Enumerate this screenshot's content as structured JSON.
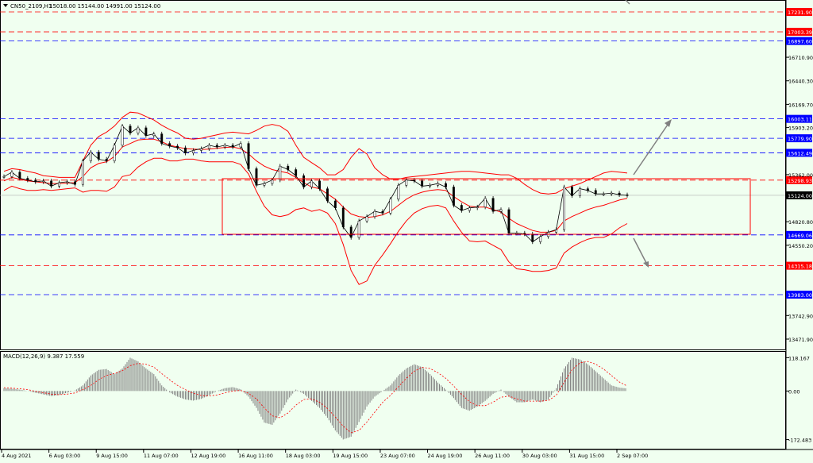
{
  "header": {
    "symbol_info": "CN50_2109,H1",
    "ohlc": "15018.00 15144.00 14991.00 15124.00"
  },
  "macd": {
    "label": "MACD(12,26,9) 9.387 17.559",
    "ticks": [
      "118.167",
      "0.00",
      "-172.483"
    ]
  },
  "price_axis": {
    "ticks": [
      "16710.90",
      "16440.30",
      "16169.70",
      "15903.20",
      "15362.00",
      "14820.80",
      "14550.20",
      "13742.90",
      "13471.90"
    ]
  },
  "price_labels": [
    {
      "text": "17231.90",
      "price": 17231.9,
      "color": "#ff0000",
      "style": "dashed"
    },
    {
      "text": "17003.39",
      "price": 17003.39,
      "color": "#ff0000",
      "style": "dashed"
    },
    {
      "text": "16897.60",
      "price": 16897.6,
      "color": "#0000ff",
      "style": "dashed"
    },
    {
      "text": "16003.11",
      "price": 16003.11,
      "color": "#0000ff",
      "style": "dashed"
    },
    {
      "text": "15779.90",
      "price": 15779.9,
      "color": "#0000ff",
      "style": "dashed"
    },
    {
      "text": "15612.49",
      "price": 15612.49,
      "color": "#0000ff",
      "style": "dashed"
    },
    {
      "text": "15298.93",
      "price": 15298.93,
      "color": "#ff0000",
      "style": "dashed"
    },
    {
      "text": "15124.00",
      "price": 15124.0,
      "color": "#000000",
      "style": "current"
    },
    {
      "text": "14669.06",
      "price": 14669.06,
      "color": "#0000ff",
      "style": "dashed"
    },
    {
      "text": "14315.18",
      "price": 14315.18,
      "color": "#ff0000",
      "style": "dashed"
    },
    {
      "text": "13983.00",
      "price": 13983.0,
      "color": "#0000ff",
      "style": "dashed"
    }
  ],
  "time_axis": {
    "ticks": [
      "4 Aug 2021",
      "6 Aug 03:00",
      "9 Aug 15:00",
      "11 Aug 07:00",
      "12 Aug 19:00",
      "16 Aug 11:00",
      "18 Aug 03:00",
      "19 Aug 15:00",
      "23 Aug 07:00",
      "24 Aug 19:00",
      "26 Aug 11:00",
      "30 Aug 03:00",
      "31 Aug 15:00",
      "2 Sep 07:00"
    ]
  },
  "colors": {
    "background": "#f0fff0",
    "bollinger": "#ff0000",
    "candles": "#000000",
    "histogram": "#808080",
    "signal": "#ff0000",
    "arrows": "#808080"
  },
  "chart_data": [
    {
      "type": "line",
      "x": [
        0,
        10,
        20,
        30,
        40,
        50,
        60,
        70,
        80,
        90,
        100,
        110,
        120,
        130,
        140,
        150,
        160,
        170,
        180,
        190,
        200,
        210,
        220,
        230,
        240,
        250,
        260,
        270,
        280,
        290,
        300,
        310,
        320,
        330,
        340,
        350,
        360,
        370,
        380,
        390,
        400,
        410,
        420,
        430,
        440,
        450,
        460,
        470,
        480,
        490,
        500,
        510,
        520,
        530,
        540,
        550,
        560,
        570,
        580,
        590,
        600,
        610,
        620,
        630,
        640,
        650,
        660,
        670,
        680,
        690,
        700,
        710,
        720,
        730,
        740,
        750,
        760,
        770,
        780,
        790
      ],
      "series": [
        {
          "values": [
            15340,
            15390,
            15320,
            15300,
            15280,
            15290,
            15230,
            15270,
            15280,
            15250,
            15520,
            15620,
            15540,
            15520,
            15700,
            15920,
            15840,
            15900,
            15810,
            15830,
            15720,
            15690,
            15670,
            15610,
            15640,
            15660,
            15700,
            15680,
            15700,
            15680,
            15720,
            15430,
            15240,
            15260,
            15300,
            15460,
            15420,
            15350,
            15220,
            15290,
            15200,
            15060,
            14980,
            14760,
            14640,
            14830,
            14880,
            14940,
            14920,
            15080,
            15240,
            15300,
            15290,
            15230,
            15240,
            15260,
            15220,
            15010,
            14950,
            14980,
            14990,
            15090,
            14940,
            14960,
            14690,
            14690,
            14680,
            14590,
            14650,
            14700,
            14730,
            15220,
            15120,
            15200,
            15180,
            15140,
            15140,
            15150,
            15130,
            15124
          ]
        },
        {
          "values": [
            15290,
            15330,
            15310,
            15290,
            15280,
            15270,
            15260,
            15260,
            15265,
            15270,
            15340,
            15440,
            15490,
            15510,
            15570,
            15680,
            15720,
            15760,
            15770,
            15770,
            15740,
            15700,
            15680,
            15660,
            15655,
            15650,
            15655,
            15665,
            15675,
            15680,
            15660,
            15600,
            15520,
            15460,
            15420,
            15400,
            15380,
            15330,
            15270,
            15220,
            15200,
            15140,
            15080,
            14990,
            14910,
            14880,
            14870,
            14880,
            14900,
            14940,
            15010,
            15080,
            15130,
            15160,
            15180,
            15190,
            15180,
            15110,
            15050,
            15000,
            14990,
            14990,
            14960,
            14930,
            14860,
            14800,
            14760,
            14720,
            14700,
            14700,
            14720,
            14830,
            14880,
            14920,
            14960,
            14990,
            15010,
            15040,
            15070,
            15090
          ]
        },
        {
          "values": [
            15400,
            15430,
            15420,
            15400,
            15380,
            15350,
            15340,
            15330,
            15330,
            15330,
            15520,
            15700,
            15800,
            15850,
            15920,
            16020,
            16080,
            16070,
            16030,
            15990,
            15930,
            15880,
            15840,
            15780,
            15770,
            15780,
            15800,
            15820,
            15840,
            15850,
            15840,
            15830,
            15870,
            15920,
            15940,
            15920,
            15860,
            15700,
            15560,
            15500,
            15440,
            15360,
            15360,
            15420,
            15560,
            15660,
            15600,
            15440,
            15360,
            15310,
            15310,
            15330,
            15340,
            15350,
            15360,
            15370,
            15380,
            15390,
            15400,
            15400,
            15390,
            15380,
            15370,
            15360,
            15360,
            15320,
            15250,
            15190,
            15150,
            15140,
            15150,
            15200,
            15230,
            15260,
            15300,
            15340,
            15380,
            15400,
            15390,
            15380
          ]
        },
        {
          "values": [
            15180,
            15230,
            15200,
            15180,
            15180,
            15190,
            15180,
            15190,
            15200,
            15210,
            15160,
            15180,
            15180,
            15170,
            15220,
            15340,
            15360,
            15450,
            15510,
            15550,
            15550,
            15520,
            15520,
            15540,
            15540,
            15520,
            15510,
            15510,
            15510,
            15510,
            15480,
            15370,
            15170,
            15000,
            14900,
            14880,
            14900,
            14960,
            14980,
            14940,
            14960,
            14920,
            14800,
            14560,
            14260,
            14100,
            14140,
            14320,
            14440,
            14570,
            14710,
            14830,
            14920,
            14970,
            15000,
            15010,
            14980,
            14830,
            14700,
            14600,
            14590,
            14600,
            14550,
            14500,
            14360,
            14280,
            14270,
            14250,
            14250,
            14260,
            14290,
            14460,
            14530,
            14580,
            14620,
            14640,
            14640,
            14680,
            14750,
            14800
          ]
        }
      ],
      "ylim": [
        13380,
        17330
      ]
    },
    {
      "type": "bar",
      "x": [
        0,
        10,
        20,
        30,
        40,
        50,
        60,
        70,
        80,
        90,
        100,
        110,
        120,
        130,
        140,
        150,
        160,
        170,
        180,
        190,
        200,
        210,
        220,
        230,
        240,
        250,
        260,
        270,
        280,
        290,
        300,
        310,
        320,
        330,
        340,
        350,
        360,
        370,
        380,
        390,
        400,
        410,
        420,
        430,
        440,
        450,
        460,
        470,
        480,
        490,
        500,
        510,
        520,
        530,
        540,
        550,
        560,
        570,
        580,
        590,
        600,
        610,
        620,
        630,
        640,
        650,
        660,
        670,
        680,
        690,
        700,
        710,
        720,
        730,
        740,
        750,
        760,
        770,
        780,
        790
      ],
      "series": [
        {
          "values": [
            10,
            8,
            5,
            0,
            -6,
            -12,
            -18,
            -14,
            -6,
            2,
            20,
            55,
            75,
            78,
            60,
            80,
            118,
            105,
            80,
            60,
            20,
            -5,
            -20,
            -30,
            -34,
            -28,
            -15,
            0,
            10,
            14,
            6,
            -20,
            -60,
            -112,
            -120,
            -80,
            -30,
            5,
            -10,
            -35,
            -60,
            -95,
            -140,
            -172,
            -162,
            -110,
            -55,
            -20,
            0,
            20,
            55,
            80,
            95,
            85,
            60,
            30,
            5,
            -25,
            -60,
            -70,
            -55,
            -35,
            -10,
            5,
            -20,
            -40,
            -40,
            -30,
            -40,
            -30,
            10,
            80,
            118,
            112,
            95,
            70,
            45,
            20,
            12,
            9
          ]
        },
        {
          "values": [
            12,
            10,
            8,
            5,
            -1,
            -6,
            -11,
            -13,
            -11,
            -7,
            5,
            20,
            40,
            55,
            62,
            72,
            90,
            98,
            95,
            85,
            62,
            40,
            20,
            5,
            -8,
            -16,
            -18,
            -14,
            -7,
            0,
            2,
            -8,
            -28,
            -60,
            -88,
            -95,
            -78,
            -50,
            -30,
            -28,
            -40,
            -62,
            -92,
            -125,
            -148,
            -140,
            -110,
            -75,
            -40,
            -15,
            15,
            45,
            70,
            84,
            80,
            65,
            45,
            18,
            -12,
            -38,
            -52,
            -52,
            -40,
            -22,
            -18,
            -28,
            -36,
            -36,
            -36,
            -34,
            -15,
            30,
            75,
            100,
            105,
            95,
            78,
            55,
            32,
            17.559
          ]
        }
      ],
      "ylim": [
        -185,
        125
      ]
    }
  ]
}
